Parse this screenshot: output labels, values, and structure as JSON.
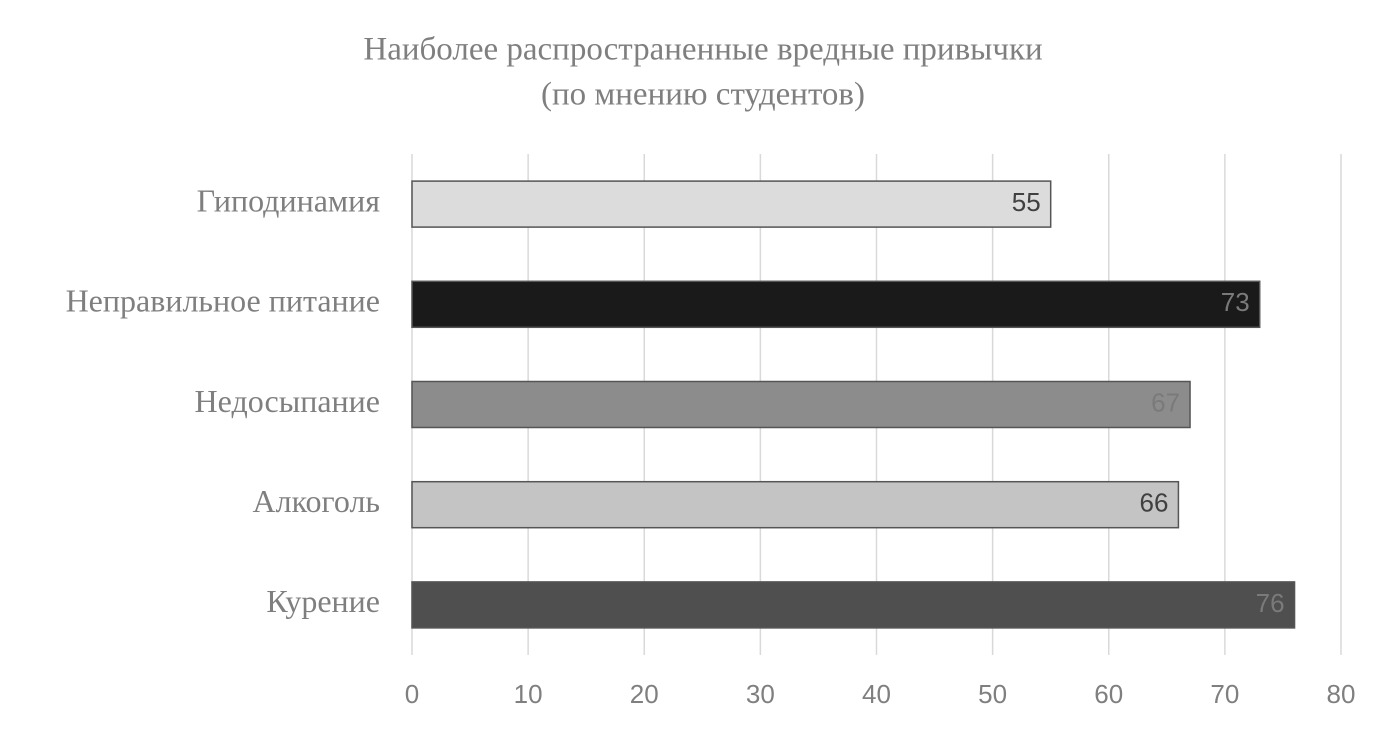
{
  "chart_data": {
    "type": "bar",
    "orientation": "horizontal",
    "title": [
      "Наиболее распространенные вредные привычки",
      "(по мнению студентов)"
    ],
    "categories": [
      "Гиподинамия",
      "Неправильное питание",
      "Недосыпание",
      "Алкоголь",
      "Курение"
    ],
    "values": [
      55,
      73,
      67,
      66,
      76
    ],
    "colors": [
      "#dcdcdc",
      "#1a1a1a",
      "#8c8c8c",
      "#c4c4c4",
      "#4f4f4f"
    ],
    "xlim": [
      0,
      80
    ],
    "xticks": [
      0,
      10,
      20,
      30,
      40,
      50,
      60,
      70,
      80
    ],
    "grid": true
  }
}
